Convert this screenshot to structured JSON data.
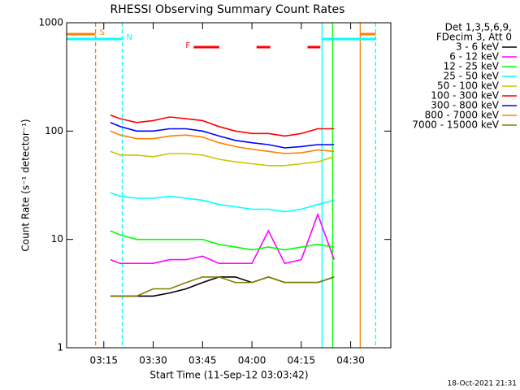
{
  "chart_data": {
    "type": "line",
    "title": "RHESSI Observing Summary Count Rates",
    "x_label": "Start Time (11-Sep-12 03:03:42)",
    "y_label": "Count Rate (s⁻¹ detector⁻¹)",
    "legend_header": [
      "Det 1,3,5,6,9,",
      "FDecim 3, Att 0"
    ],
    "timestamp": "18-Oct-2021 21:31",
    "log_y": true,
    "ylim": [
      1,
      1000
    ],
    "yticks": [
      1,
      10,
      100,
      1000
    ],
    "xlim": [
      3.7,
      102.2
    ],
    "xticks": [
      {
        "value": 15,
        "label": "03:15"
      },
      {
        "value": 30,
        "label": "03:30"
      },
      {
        "value": 45,
        "label": "03:45"
      },
      {
        "value": 60,
        "label": "04:00"
      },
      {
        "value": 75,
        "label": "04:15"
      },
      {
        "value": 90,
        "label": "04:30"
      }
    ],
    "x": [
      17,
      20,
      25,
      30,
      35,
      40,
      45,
      50,
      55,
      60,
      65,
      70,
      75,
      80,
      85
    ],
    "series": [
      {
        "name": "3 - 6 keV",
        "color": "#000000",
        "values": [
          3,
          3,
          3,
          3,
          3.2,
          3.5,
          4,
          4.5,
          4.5,
          4,
          4.5,
          4,
          4,
          4,
          4.5
        ]
      },
      {
        "name": "6 - 12 keV",
        "color": "#ff00ff",
        "values": [
          6.5,
          6,
          6,
          6,
          6.5,
          6.5,
          7,
          6,
          6,
          6,
          12,
          6,
          6.5,
          17,
          6.5
        ]
      },
      {
        "name": "12 - 25 keV",
        "color": "#00ff00",
        "values": [
          12,
          11,
          10,
          10,
          10,
          10,
          10,
          9,
          8.5,
          8,
          8.5,
          8,
          8.5,
          9,
          8.5
        ]
      },
      {
        "name": "25 - 50 keV",
        "color": "#00ffff",
        "values": [
          27,
          25,
          24,
          24,
          25,
          24,
          23,
          21,
          20,
          19,
          19,
          18,
          19,
          21,
          23
        ]
      },
      {
        "name": "50 - 100 keV",
        "color": "#c8c800",
        "values": [
          65,
          60,
          60,
          58,
          62,
          62,
          60,
          55,
          52,
          50,
          48,
          48,
          50,
          52,
          58
        ]
      },
      {
        "name": "100 - 300 keV",
        "color": "#ff0000",
        "values": [
          140,
          130,
          120,
          125,
          135,
          130,
          125,
          110,
          100,
          95,
          95,
          90,
          95,
          105,
          105
        ]
      },
      {
        "name": "300 - 800 keV",
        "color": "#0000ff",
        "values": [
          120,
          110,
          100,
          100,
          105,
          105,
          100,
          90,
          82,
          78,
          75,
          70,
          72,
          75,
          75
        ]
      },
      {
        "name": "800 - 7000 keV",
        "color": "#ff8000",
        "values": [
          100,
          92,
          85,
          85,
          90,
          92,
          88,
          78,
          72,
          68,
          65,
          62,
          63,
          67,
          65
        ]
      },
      {
        "name": "7000 - 15000 keV",
        "color": "#808000",
        "values": [
          3,
          3,
          3,
          3.5,
          3.5,
          4,
          4.5,
          4.5,
          4,
          4,
          4.5,
          4,
          4,
          4,
          4.5
        ]
      }
    ],
    "flags": [
      {
        "label": "S",
        "color": "#ff8000",
        "segments": [
          [
            3.7,
            12.5
          ],
          [
            92.9,
            97.6
          ]
        ]
      },
      {
        "label": "N",
        "color": "#00ffff",
        "segments": [
          [
            3.7,
            20.6
          ],
          [
            81.3,
            97.6
          ]
        ]
      },
      {
        "label": "F",
        "color": "#ff0000",
        "segments": [
          [
            42.3,
            50.1
          ],
          [
            61.4,
            65.6
          ],
          [
            76.9,
            80.8
          ]
        ]
      }
    ],
    "marker_lines": [
      {
        "x": 12.5,
        "color": "#ff8000",
        "dashed": true
      },
      {
        "x": 20.6,
        "color": "#00ffff",
        "dashed": true
      },
      {
        "x": 81.3,
        "color": "#00ffff",
        "dashed": false
      },
      {
        "x": 84.5,
        "color": "#00ff00",
        "dashed": false
      },
      {
        "x": 92.9,
        "color": "#ff8000",
        "dashed": false
      },
      {
        "x": 97.6,
        "color": "#00ffff",
        "dashed": true
      }
    ]
  }
}
